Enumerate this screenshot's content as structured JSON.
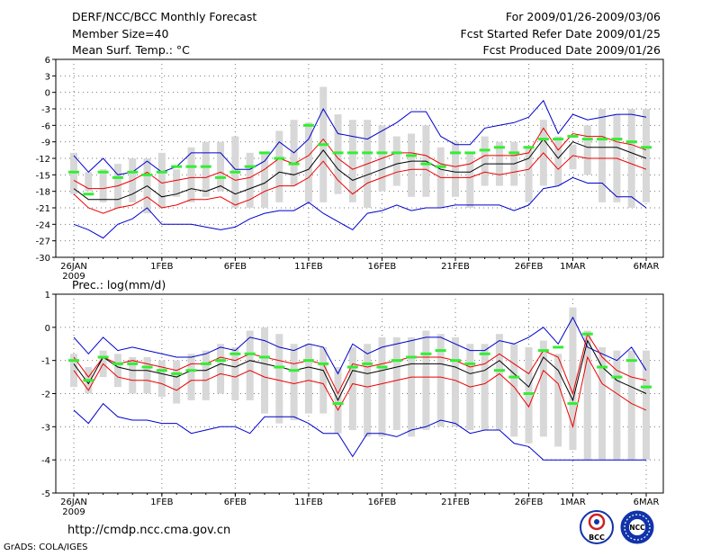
{
  "header": {
    "title": "DERF/NCC/BCC Monthly Forecast",
    "member_size": "Member Size=40",
    "variable": "Mean Surf. Temp.: °C",
    "period": "For 2009/01/26-2009/03/06",
    "started": "Fcst Started Refer Date 2009/01/25",
    "produced": "Fcst Produced Date 2009/01/26"
  },
  "footer": {
    "url": "http://cmdp.ncc.cma.gov.cn",
    "credit": "GrADS: COLA/IGES",
    "logo1_text": "BCC",
    "logo2_text": "NCC"
  },
  "colors": {
    "max_min": "#0000cc",
    "spread": "#ee0000",
    "mean": "#000000",
    "box": "#d8d8d8",
    "marker": "#33ee33",
    "grid": "#777777"
  },
  "chart_data": [
    {
      "type": "line",
      "title": "Mean Surf. Temp.: °C",
      "x_start": "2009-01-26",
      "x_tick_labels": [
        "26JAN",
        "1FEB",
        "6FEB",
        "11FEB",
        "16FEB",
        "21FEB",
        "26FEB",
        "1MAR",
        "6MAR"
      ],
      "x_tick_days": [
        0,
        6,
        11,
        16,
        21,
        26,
        31,
        34,
        39
      ],
      "x_year_label": "2009",
      "ylim": [
        -30,
        6
      ],
      "yticks": [
        6,
        3,
        0,
        -3,
        -6,
        -9,
        -12,
        -15,
        -18,
        -21,
        -24,
        -27,
        -30
      ],
      "ytick_labels": [
        "6",
        "3",
        "0",
        "-3",
        "-6",
        "-9",
        "-12",
        "-15",
        "-18",
        "-21",
        "-24",
        "-27",
        "-30"
      ],
      "series": [
        {
          "name": "max",
          "values": [
            -11.5,
            -14.5,
            -12,
            -15,
            -14.5,
            -12.5,
            -14.5,
            -13.5,
            -11,
            -11,
            -11,
            -14,
            -14,
            -12.5,
            -9,
            -11,
            -8.5,
            -3,
            -7.5,
            -8,
            -8.5,
            -7,
            -5.5,
            -3.5,
            -3.5,
            -8,
            -9.5,
            -9.5,
            -6.5,
            -6,
            -5.5,
            -4.5,
            -1.5,
            -7.5,
            -4,
            -5,
            -4.5,
            -4,
            -4,
            -4.5
          ]
        },
        {
          "name": "spread_upper",
          "values": [
            -16,
            -17.5,
            -17.5,
            -17,
            -16,
            -14.5,
            -16.5,
            -16,
            -15.5,
            -15.5,
            -14.5,
            -16,
            -15.5,
            -14,
            -12,
            -13,
            -11.5,
            -8.5,
            -12,
            -14,
            -13,
            -12,
            -11,
            -11,
            -11.5,
            -13,
            -13.5,
            -13,
            -11.5,
            -11.5,
            -11.5,
            -11,
            -6.5,
            -10.5,
            -7.5,
            -8,
            -8,
            -9,
            -9.5,
            -10.5
          ]
        },
        {
          "name": "mean",
          "values": [
            -17.5,
            -19.5,
            -19.5,
            -19.5,
            -18.5,
            -17,
            -19,
            -18.5,
            -17.5,
            -18,
            -17,
            -18.5,
            -17.5,
            -16.5,
            -14.5,
            -15,
            -14,
            -10.5,
            -14,
            -16,
            -15,
            -14,
            -13,
            -12.5,
            -12.5,
            -14,
            -14.5,
            -14.5,
            -13,
            -13,
            -13,
            -12,
            -8.5,
            -12,
            -9,
            -10,
            -10,
            -10,
            -11,
            -12
          ]
        },
        {
          "name": "spread_lower",
          "values": [
            -18.5,
            -21,
            -22,
            -21,
            -20.5,
            -19,
            -21,
            -20.5,
            -19.5,
            -19.5,
            -19,
            -20.5,
            -19.5,
            -18,
            -17,
            -17,
            -15.5,
            -12.5,
            -16,
            -18.5,
            -16.5,
            -15.5,
            -14.5,
            -14,
            -14,
            -15.5,
            -15.5,
            -15.5,
            -14.5,
            -15,
            -14.5,
            -14,
            -11,
            -14,
            -11.5,
            -12,
            -12,
            -12,
            -13,
            -14
          ]
        },
        {
          "name": "min",
          "values": [
            -24,
            -25,
            -26.5,
            -24,
            -23,
            -21,
            -24,
            -24,
            -24,
            -24.5,
            -25,
            -24.5,
            -23,
            -22,
            -21.5,
            -21.5,
            -20,
            -22,
            -23.5,
            -25,
            -22,
            -21.5,
            -20.5,
            -21.5,
            -21,
            -21,
            -20.5,
            -20.5,
            -20.5,
            -20.5,
            -21.5,
            -20.5,
            -17.5,
            -17,
            -15.5,
            -16.5,
            -16.5,
            -19,
            -19,
            -21
          ]
        }
      ],
      "box_ranges": [
        [
          -11,
          -18.5
        ],
        [
          -14.5,
          -18
        ],
        [
          -14,
          -20
        ],
        [
          -13,
          -21
        ],
        [
          -12,
          -20
        ],
        [
          -12,
          -22
        ],
        [
          -11,
          -21
        ],
        [
          -14,
          -19
        ],
        [
          -10,
          -20
        ],
        [
          -9,
          -19
        ],
        [
          -9,
          -18
        ],
        [
          -8,
          -21
        ],
        [
          -11,
          -21
        ],
        [
          -11,
          -21
        ],
        [
          -7,
          -20
        ],
        [
          -5,
          -17
        ],
        [
          -5.5,
          -20
        ],
        [
          1,
          -20
        ],
        [
          -4,
          -18.5
        ],
        [
          -5,
          -20
        ],
        [
          -5,
          -21
        ],
        [
          -6,
          -18
        ],
        [
          -8,
          -17
        ],
        [
          -7.5,
          -19
        ],
        [
          -6,
          -19
        ],
        [
          -10,
          -21
        ],
        [
          -9,
          -19
        ],
        [
          -11,
          -21
        ],
        [
          -8,
          -17
        ],
        [
          -9,
          -17
        ],
        [
          -9,
          -17
        ],
        [
          -10,
          -20
        ],
        [
          -5,
          -17
        ],
        [
          -8,
          -17
        ],
        [
          -9.5,
          -14
        ],
        [
          -6,
          -15
        ],
        [
          -3,
          -20
        ],
        [
          -4,
          -20
        ],
        [
          -3,
          -21
        ],
        [
          -3,
          -20
        ]
      ],
      "obs_markers": [
        -14.5,
        -18.5,
        -14.5,
        -15.5,
        -14.5,
        -15,
        -14.5,
        -13.5,
        -13.5,
        -13.5,
        -15.5,
        -14.5,
        -13.5,
        -11,
        -12,
        -13,
        -6,
        -9.5,
        -11,
        -11,
        -11,
        -11,
        -11,
        -11.5,
        -13,
        -13.5,
        -11,
        -11,
        -10.5,
        -10,
        -11,
        -10,
        -8.5,
        -8.5,
        -8,
        -8.5,
        -8.5,
        -8.5,
        -9,
        -10
      ]
    },
    {
      "type": "line",
      "title": "Prec.: log(mm/d)",
      "x_start": "2009-01-26",
      "x_tick_labels": [
        "26JAN",
        "1FEB",
        "6FEB",
        "11FEB",
        "16FEB",
        "21FEB",
        "26FEB",
        "1MAR",
        "6MAR"
      ],
      "x_tick_days": [
        0,
        6,
        11,
        16,
        21,
        26,
        31,
        34,
        39
      ],
      "x_year_label": "2009",
      "ylim": [
        -5,
        1
      ],
      "yticks": [
        1,
        0,
        -1,
        -2,
        -3,
        -4,
        -5
      ],
      "ytick_labels": [
        "1",
        "0",
        "-1",
        "-2",
        "-3",
        "-4",
        "-5"
      ],
      "series": [
        {
          "name": "max",
          "values": [
            -0.3,
            -0.8,
            -0.3,
            -0.7,
            -0.6,
            -0.7,
            -0.8,
            -0.9,
            -0.9,
            -0.8,
            -0.6,
            -0.7,
            -0.3,
            -0.4,
            -0.6,
            -0.7,
            -0.5,
            -0.6,
            -1.4,
            -0.5,
            -0.8,
            -0.6,
            -0.5,
            -0.4,
            -0.3,
            -0.3,
            -0.5,
            -0.7,
            -0.7,
            -0.4,
            -0.5,
            -0.3,
            0,
            -0.5,
            0.3,
            -0.6,
            -0.8,
            -1,
            -0.6,
            -1.3
          ]
        },
        {
          "name": "spread_upper",
          "values": [
            -0.9,
            -1.5,
            -0.9,
            -1.1,
            -1,
            -1.1,
            -1.2,
            -1.3,
            -1.1,
            -1.1,
            -0.9,
            -1,
            -0.8,
            -0.9,
            -1,
            -1.1,
            -1,
            -1.1,
            -2,
            -1.1,
            -1.2,
            -1.1,
            -1,
            -0.9,
            -0.9,
            -0.9,
            -1,
            -1.2,
            -1.1,
            -0.8,
            -1.1,
            -1.4,
            -0.7,
            -0.9,
            -2,
            -0.2,
            -0.9,
            -1.3,
            -1.5,
            -1.6
          ]
        },
        {
          "name": "mean",
          "values": [
            -1.1,
            -1.7,
            -0.9,
            -1.2,
            -1.3,
            -1.3,
            -1.4,
            -1.5,
            -1.3,
            -1.3,
            -1.1,
            -1.2,
            -1,
            -1.1,
            -1.2,
            -1.3,
            -1.2,
            -1.3,
            -2.2,
            -1.3,
            -1.4,
            -1.3,
            -1.2,
            -1.1,
            -1.1,
            -1.1,
            -1.2,
            -1.4,
            -1.3,
            -1,
            -1.4,
            -1.8,
            -0.9,
            -1.3,
            -2.2,
            -0.4,
            -1.2,
            -1.6,
            -1.8,
            -2
          ]
        },
        {
          "name": "spread_lower",
          "values": [
            -1.3,
            -1.9,
            -1.1,
            -1.5,
            -1.6,
            -1.6,
            -1.7,
            -1.9,
            -1.6,
            -1.6,
            -1.4,
            -1.5,
            -1.3,
            -1.5,
            -1.6,
            -1.7,
            -1.6,
            -1.7,
            -2.5,
            -1.7,
            -1.8,
            -1.7,
            -1.6,
            -1.5,
            -1.5,
            -1.5,
            -1.6,
            -1.8,
            -1.7,
            -1.4,
            -1.8,
            -2.4,
            -1.3,
            -1.7,
            -3,
            -0.9,
            -1.7,
            -2,
            -2.3,
            -2.5
          ]
        },
        {
          "name": "min",
          "values": [
            -2.5,
            -2.9,
            -2.3,
            -2.7,
            -2.8,
            -2.8,
            -2.9,
            -2.9,
            -3.2,
            -3.1,
            -3,
            -3,
            -3.2,
            -2.7,
            -2.7,
            -2.7,
            -2.9,
            -3.2,
            -3.2,
            -3.9,
            -3.2,
            -3.2,
            -3.3,
            -3.1,
            -3,
            -2.8,
            -2.9,
            -3.2,
            -3.1,
            -3.1,
            -3.5,
            -3.6,
            -4,
            -4,
            -4,
            -4,
            -4,
            -4,
            -4,
            -4
          ]
        }
      ],
      "box_ranges": [
        [
          -0.8,
          -1.8
        ],
        [
          -1.2,
          -2
        ],
        [
          -0.7,
          -1.5
        ],
        [
          -0.8,
          -1.8
        ],
        [
          -0.9,
          -2
        ],
        [
          -0.9,
          -2
        ],
        [
          -1,
          -2.1
        ],
        [
          -1,
          -2.3
        ],
        [
          -0.8,
          -2.2
        ],
        [
          -0.7,
          -2.2
        ],
        [
          -0.5,
          -2
        ],
        [
          -0.6,
          -2.2
        ],
        [
          -0.1,
          -2.2
        ],
        [
          0,
          -2.6
        ],
        [
          -0.2,
          -2.9
        ],
        [
          -0.5,
          -2.8
        ],
        [
          -0.5,
          -2.6
        ],
        [
          -0.6,
          -2.6
        ],
        [
          -1.2,
          -3.2
        ],
        [
          -0.6,
          -3.1
        ],
        [
          -0.5,
          -3.3
        ],
        [
          -0.3,
          -3.3
        ],
        [
          -0.3,
          -3.1
        ],
        [
          -0.3,
          -3.3
        ],
        [
          -0.1,
          -3.1
        ],
        [
          -0.2,
          -3
        ],
        [
          -0.3,
          -3
        ],
        [
          -0.5,
          -3.1
        ],
        [
          -0.5,
          -3.1
        ],
        [
          -0.2,
          -3.1
        ],
        [
          -0.5,
          -3.3
        ],
        [
          -0.6,
          -3.5
        ],
        [
          -0.4,
          -3.3
        ],
        [
          -0.8,
          -3.6
        ],
        [
          0.6,
          -3.7
        ],
        [
          -0.1,
          -4
        ],
        [
          -0.6,
          -4
        ],
        [
          -0.7,
          -4
        ],
        [
          -0.7,
          -4
        ],
        [
          -0.7,
          -4
        ]
      ],
      "obs_markers": [
        -1,
        -1.6,
        -0.9,
        -1.1,
        -1.1,
        -1.2,
        -1.3,
        -1.4,
        -1.3,
        -1.1,
        -1,
        -0.8,
        -0.8,
        -0.9,
        -1.2,
        -1.3,
        -1,
        -1.1,
        -2.3,
        -1.2,
        -1.1,
        -1.2,
        -1,
        -0.9,
        -0.8,
        -0.7,
        -1,
        -1.1,
        -0.8,
        -1.3,
        -1.5,
        -2,
        -0.7,
        -0.6,
        -2.3,
        -0.2,
        -1.2,
        -1.5,
        -1,
        -1.8
      ]
    }
  ]
}
